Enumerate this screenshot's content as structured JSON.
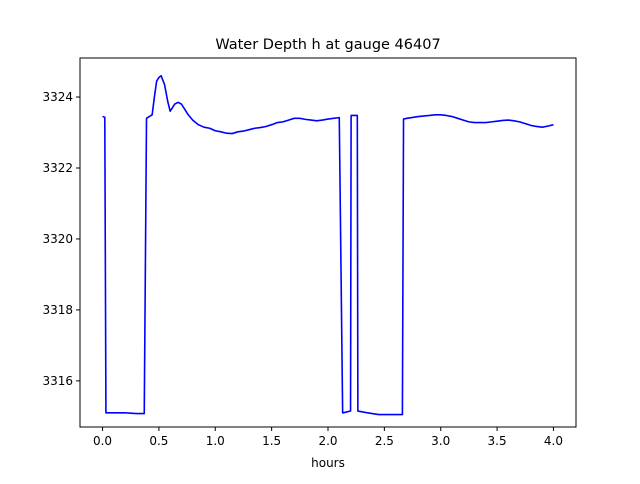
{
  "chart_data": {
    "type": "line",
    "title": "Water Depth h at gauge 46407",
    "xlabel": "hours",
    "ylabel": "",
    "xlim": [
      -0.2,
      4.2
    ],
    "ylim": [
      3314.7,
      3325.1
    ],
    "xticks": [
      0.0,
      0.5,
      1.0,
      1.5,
      2.0,
      2.5,
      3.0,
      3.5,
      4.0
    ],
    "xtick_labels": [
      "0.0",
      "0.5",
      "1.0",
      "1.5",
      "2.0",
      "2.5",
      "3.0",
      "3.5",
      "4.0"
    ],
    "yticks": [
      3316,
      3318,
      3320,
      3322,
      3324
    ],
    "ytick_labels": [
      "3316",
      "3318",
      "3320",
      "3322",
      "3324"
    ],
    "grid": false,
    "series": [
      {
        "color": "#0000ff",
        "x": [
          0.0,
          0.02,
          0.03,
          0.1,
          0.2,
          0.3,
          0.37,
          0.39,
          0.4,
          0.44,
          0.46,
          0.48,
          0.5,
          0.52,
          0.55,
          0.58,
          0.6,
          0.62,
          0.64,
          0.67,
          0.7,
          0.73,
          0.76,
          0.8,
          0.85,
          0.9,
          0.95,
          1.0,
          1.05,
          1.1,
          1.15,
          1.2,
          1.25,
          1.3,
          1.35,
          1.4,
          1.45,
          1.5,
          1.55,
          1.6,
          1.65,
          1.7,
          1.75,
          1.8,
          1.85,
          1.9,
          1.95,
          2.0,
          2.05,
          2.1,
          2.13,
          2.135,
          2.2,
          2.205,
          2.26,
          2.265,
          2.35,
          2.45,
          2.55,
          2.66,
          2.67,
          2.7,
          2.8,
          2.9,
          2.95,
          3.0,
          3.05,
          3.1,
          3.15,
          3.2,
          3.25,
          3.3,
          3.35,
          3.4,
          3.45,
          3.5,
          3.55,
          3.6,
          3.65,
          3.7,
          3.75,
          3.8,
          3.85,
          3.9,
          3.95,
          4.0
        ],
        "y": [
          3323.45,
          3323.43,
          3315.1,
          3315.1,
          3315.1,
          3315.08,
          3315.08,
          3323.4,
          3323.42,
          3323.5,
          3324.0,
          3324.45,
          3324.55,
          3324.6,
          3324.35,
          3323.85,
          3323.6,
          3323.7,
          3323.8,
          3323.85,
          3323.8,
          3323.65,
          3323.5,
          3323.35,
          3323.22,
          3323.15,
          3323.12,
          3323.05,
          3323.02,
          3322.98,
          3322.97,
          3323.02,
          3323.04,
          3323.08,
          3323.12,
          3323.14,
          3323.17,
          3323.22,
          3323.28,
          3323.3,
          3323.35,
          3323.4,
          3323.4,
          3323.37,
          3323.35,
          3323.33,
          3323.35,
          3323.38,
          3323.4,
          3323.42,
          3315.1,
          3315.1,
          3315.15,
          3323.48,
          3323.48,
          3315.15,
          3315.1,
          3315.05,
          3315.05,
          3315.05,
          3323.38,
          3323.4,
          3323.45,
          3323.48,
          3323.5,
          3323.5,
          3323.48,
          3323.45,
          3323.4,
          3323.35,
          3323.3,
          3323.28,
          3323.28,
          3323.28,
          3323.3,
          3323.32,
          3323.34,
          3323.35,
          3323.33,
          3323.3,
          3323.25,
          3323.2,
          3323.17,
          3323.15,
          3323.18,
          3323.22
        ]
      }
    ]
  }
}
